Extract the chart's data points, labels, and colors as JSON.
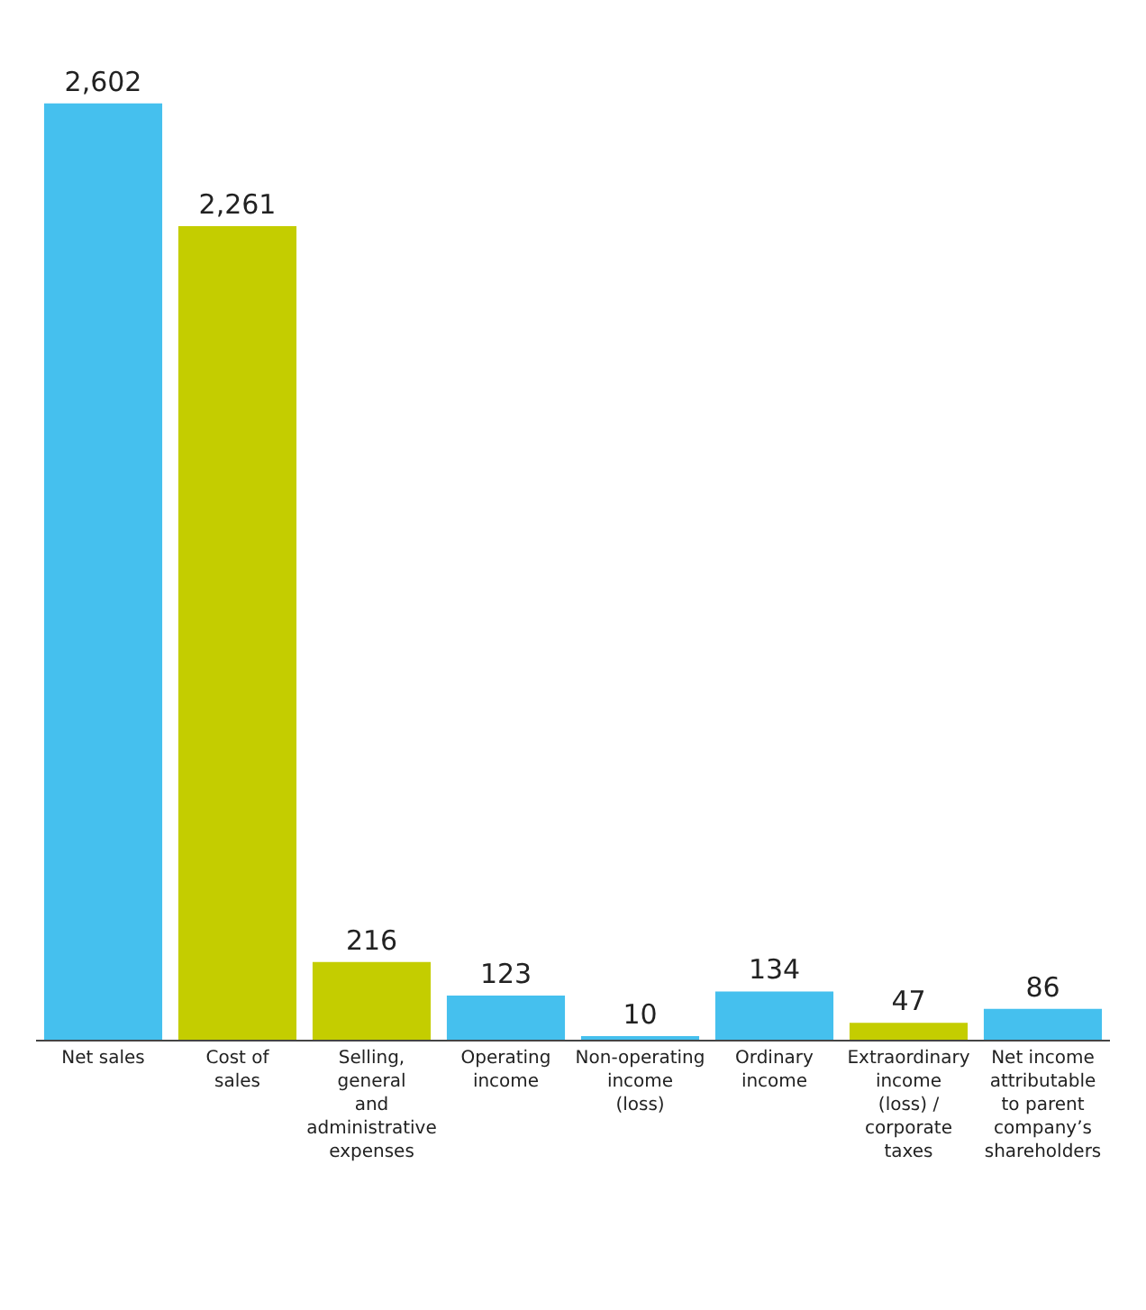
{
  "chart_data": {
    "type": "bar",
    "categories": [
      "Net sales",
      "Cost of sales",
      "Selling, general and administrative expenses",
      "Operating income",
      "Non-operating income (loss)",
      "Ordinary income",
      "Extraordinary income (loss) / corporate taxes",
      "Net income attributable to parent company’s shareholders"
    ],
    "values": [
      2602,
      2261,
      216,
      123,
      10,
      134,
      47,
      86
    ],
    "colors": [
      "#45c0ee",
      "#c4cd00",
      "#c4cd00",
      "#45c0ee",
      "#45c0ee",
      "#45c0ee",
      "#c4cd00",
      "#45c0ee"
    ],
    "value_labels": [
      "2,602",
      "2,261",
      "216",
      "123",
      "10",
      "134",
      "47",
      "86"
    ],
    "grid": false,
    "legend": false
  }
}
